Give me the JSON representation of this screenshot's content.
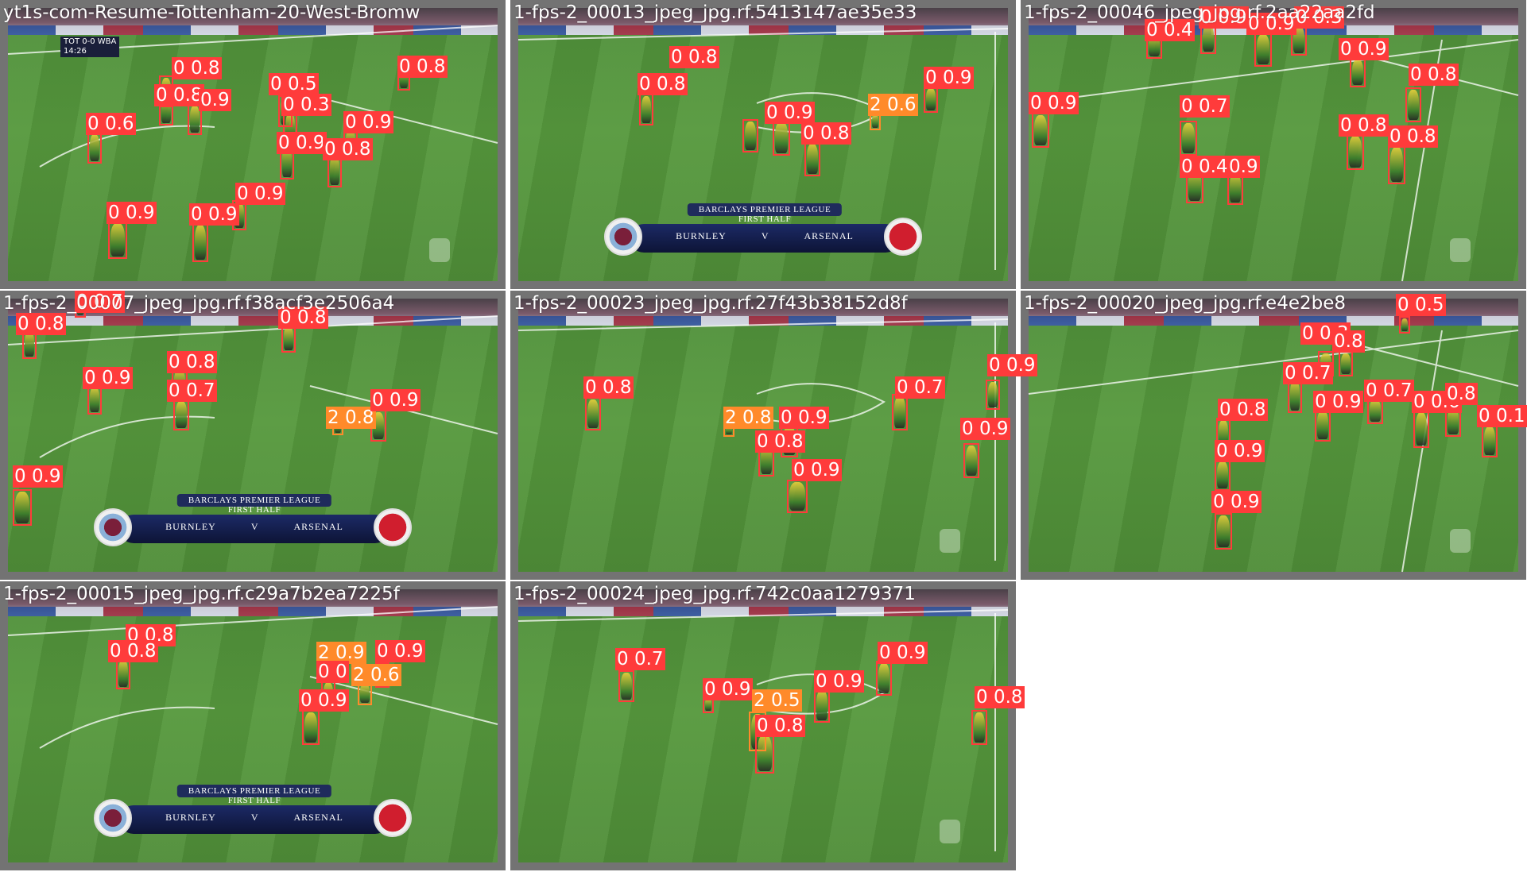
{
  "tiles": [
    {
      "title": "yt1s-com-Resume-Tottenham-20-West-Bromw",
      "scorebug": null,
      "topbug": {
        "home": "TOT",
        "score": "0-0",
        "away": "WBA",
        "time": "14:26"
      },
      "detections": [
        {
          "label": "0 0.8"
        },
        {
          "label": "0 0.8"
        },
        {
          "label": "0.9"
        },
        {
          "label": "0 0.6"
        },
        {
          "label": "0 0.5"
        },
        {
          "label": "0 0.3"
        },
        {
          "label": "0 0.9"
        },
        {
          "label": "0 0.9"
        },
        {
          "label": "0 0.8"
        },
        {
          "label": "0 0.8"
        },
        {
          "label": "0 0.9"
        },
        {
          "label": "0 0.9"
        },
        {
          "label": "0 0.9"
        }
      ]
    },
    {
      "title": "1-fps-2_00013_jpeg_jpg.rf.5413147ae35e33",
      "scorebug": {
        "competition": "BARCLAYS PREMIER LEAGUE",
        "period": "FIRST HALF",
        "home": "BURNLEY",
        "vs": "V",
        "away": "ARSENAL"
      },
      "topbug": null,
      "detections": [
        {
          "label": "0 0.8"
        },
        {
          "label": "0 0.8"
        },
        {
          "label": "0 0.9"
        },
        {
          "label": "2 0.6"
        },
        {
          "label": "0 0.9"
        },
        {
          "label": "0 0.8"
        }
      ]
    },
    {
      "title": "1-fps-2_00046_jpeg_jpg.rf.2aa22aa2fd",
      "scorebug": null,
      "topbug": null,
      "detections": [
        {
          "label": "0 0.4"
        },
        {
          "label": "0 0.9"
        },
        {
          "label": "0 0.9"
        },
        {
          "label": "0 0.3"
        },
        {
          "label": "0 0.9"
        },
        {
          "label": "0 0.8"
        },
        {
          "label": "0 0.9"
        },
        {
          "label": "0 0.7"
        },
        {
          "label": "0 0.8"
        },
        {
          "label": "0 0.8"
        },
        {
          "label": "0 0.4"
        },
        {
          "label": "0.9"
        }
      ]
    },
    {
      "title": "1-fps-2_00007_jpeg_jpg.rf.f38acf3e2506a4",
      "scorebug": {
        "competition": "BARCLAYS PREMIER LEAGUE",
        "period": "FIRST HALF",
        "home": "BURNLEY",
        "vs": "V",
        "away": "ARSENAL"
      },
      "topbug": null,
      "detections": [
        {
          "label": "0 0.7"
        },
        {
          "label": "0 0.8"
        },
        {
          "label": "0 0.8"
        },
        {
          "label": "0 0.8"
        },
        {
          "label": "0 0.9"
        },
        {
          "label": "0 0.7"
        },
        {
          "label": "2 0.8"
        },
        {
          "label": "0 0.9"
        },
        {
          "label": "0 0.9"
        }
      ]
    },
    {
      "title": "1-fps-2_00023_jpeg_jpg.rf.27f43b38152d8f",
      "scorebug": null,
      "topbug": null,
      "detections": [
        {
          "label": "0 0.8"
        },
        {
          "label": "2 0.8"
        },
        {
          "label": "0 0.9"
        },
        {
          "label": "0 0.7"
        },
        {
          "label": "0 0.9"
        },
        {
          "label": "0 0.8"
        },
        {
          "label": "0 0.9"
        },
        {
          "label": "0 0.9"
        }
      ]
    },
    {
      "title": "1-fps-2_00020_jpeg_jpg.rf.e4e2be8",
      "scorebug": null,
      "topbug": null,
      "detections": [
        {
          "label": "0 0.5"
        },
        {
          "label": "0 0.3"
        },
        {
          "label": "0.8"
        },
        {
          "label": "0 0.7"
        },
        {
          "label": "0 0.8"
        },
        {
          "label": "0 0.9"
        },
        {
          "label": "0 0.7"
        },
        {
          "label": "0 0.6"
        },
        {
          "label": "0.8"
        },
        {
          "label": "0 0.9"
        },
        {
          "label": "0 0.1"
        },
        {
          "label": "0 0.9"
        }
      ]
    },
    {
      "title": "1-fps-2_00015_jpeg_jpg.rf.c29a7b2ea7225f",
      "scorebug": {
        "competition": "BARCLAYS PREMIER LEAGUE",
        "period": "FIRST HALF",
        "home": "BURNLEY",
        "vs": "V",
        "away": "ARSENAL"
      },
      "topbug": null,
      "detections": [
        {
          "label": "0 0.8"
        },
        {
          "label": "0 0.8"
        },
        {
          "label": "2 0.9"
        },
        {
          "label": "0 0.9"
        },
        {
          "label": "0 0"
        },
        {
          "label": "2 0.6"
        },
        {
          "label": "0 0.9"
        }
      ]
    },
    {
      "title": "1-fps-2_00024_jpeg_jpg.rf.742c0aa1279371",
      "scorebug": null,
      "topbug": null,
      "detections": [
        {
          "label": "0 0.7"
        },
        {
          "label": "0 0.9"
        },
        {
          "label": "2 0.5"
        },
        {
          "label": "0 0.9"
        },
        {
          "label": "0 0.9"
        },
        {
          "label": "0 0.8"
        },
        {
          "label": "0 0.8"
        }
      ]
    }
  ]
}
